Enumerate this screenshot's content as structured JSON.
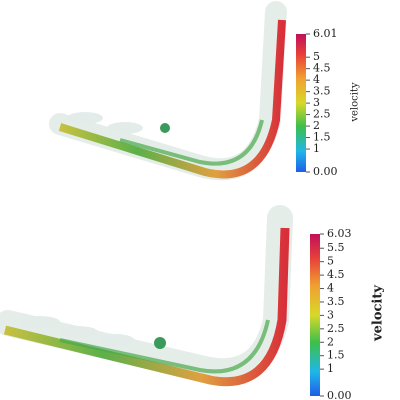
{
  "panels": [
    {
      "colorbar": {
        "label": "velocity",
        "lim": [
          0,
          6.01
        ],
        "ticks": [
          {
            "value": 6.01,
            "label": "6.01"
          },
          5,
          4.5,
          4,
          3.5,
          3,
          2.5,
          2,
          1.5,
          1,
          {
            "value": 0,
            "label": "0.00"
          }
        ]
      }
    },
    {
      "colorbar": {
        "label": "velocity",
        "lim": [
          0,
          6.03
        ],
        "ticks": [
          {
            "value": 6.03,
            "label": "6.03"
          },
          5.5,
          5,
          4.5,
          4,
          3.5,
          3,
          2.5,
          2,
          1.5,
          1,
          {
            "value": 0,
            "label": "0.00"
          }
        ]
      }
    }
  ]
}
